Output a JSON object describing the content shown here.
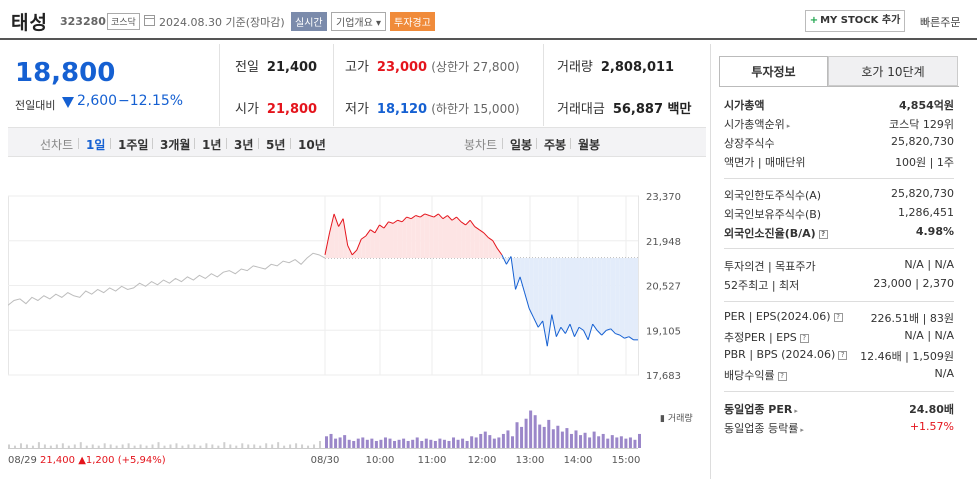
{
  "header": {
    "name": "태성",
    "code": "323280",
    "market": "코스닥",
    "date": "2024.08.30  기준(장마감)",
    "realtime": "실시간",
    "company_overview": "기업개요",
    "warning": "투자경고",
    "mystock_plus": "+",
    "mystock": "MY STOCK 추가",
    "quick_order": "빠른주문"
  },
  "price": {
    "current": "18,800",
    "change_label": "전일대비",
    "change": "2,600",
    "change_pct": "−12.15%"
  },
  "stats": {
    "prev_label": "전일",
    "prev": "21,400",
    "high_label": "고가",
    "high": "23,000",
    "upper_limit": "(상한가 27,800)",
    "volume_label": "거래량",
    "volume": "2,808,011",
    "open_label": "시가",
    "open": "21,800",
    "low_label": "저가",
    "low": "18,120",
    "lower_limit": "(하한가 15,000)",
    "amount_label": "거래대금",
    "amount": "56,887 백만"
  },
  "chart_tabs": {
    "line_chart": "선차트",
    "periods": [
      "1일",
      "1주일",
      "3개월",
      "1년",
      "3년",
      "5년",
      "10년"
    ],
    "candle_chart": "봉차트",
    "candle_periods": [
      "일봉",
      "주봉",
      "월봉"
    ]
  },
  "chart_data": {
    "type": "line",
    "y_ticks": [
      "23,370",
      "21,948",
      "20,527",
      "19,105",
      "17,683"
    ],
    "x_ticks": [
      "08/29",
      "08/30",
      "10:00",
      "11:00",
      "12:00",
      "13:00",
      "14:00",
      "15:00"
    ],
    "volume_label": "▮ 거래량",
    "prev_close": 21400,
    "ylim": [
      17683,
      23370
    ],
    "prev_day_series": [
      19900,
      20050,
      20100,
      19950,
      20150,
      20050,
      20200,
      20100,
      20250,
      20150,
      20300,
      20200,
      20150,
      20350,
      20250,
      20400,
      20300,
      20450,
      20350,
      20500,
      20400,
      20450,
      20600,
      20500,
      20650,
      20550,
      20700,
      20600,
      20750,
      20650,
      20800,
      20700,
      20850,
      20750,
      20900,
      20800,
      20950,
      21000,
      20900,
      21050,
      21000,
      21150,
      21100,
      21050,
      21200,
      21150,
      21300,
      21250,
      21350,
      21200,
      21400,
      21550,
      21500,
      21400
    ],
    "today_series": [
      21500,
      22200,
      22800,
      22400,
      22650,
      21800,
      21500,
      21650,
      22000,
      22100,
      22300,
      22200,
      22450,
      22350,
      22550,
      22500,
      22600,
      22550,
      22700,
      22650,
      22750,
      22700,
      22800,
      22750,
      22700,
      22800,
      22650,
      22750,
      22600,
      22700,
      22550,
      22450,
      22600,
      22400,
      22300,
      22200,
      22050,
      21950,
      21700,
      21500,
      21200,
      21450,
      20400,
      20800,
      20300,
      19800,
      19500,
      19200,
      19400,
      18600,
      19600,
      18900,
      19200,
      19000,
      19300,
      18900,
      19200,
      19100,
      18800,
      19300,
      19100,
      18950,
      19100,
      19150,
      19000,
      18950,
      18850,
      18900,
      18800,
      18800
    ],
    "prev_day_volume": [
      3,
      2,
      4,
      3,
      2,
      5,
      3,
      2,
      3,
      4,
      2,
      3,
      5,
      2,
      3,
      2,
      4,
      3,
      2,
      3,
      4,
      2,
      3,
      2,
      3,
      5,
      2,
      3,
      4,
      2,
      3,
      3,
      2,
      4,
      3,
      2,
      5,
      3,
      2,
      4,
      3,
      3,
      2,
      4,
      3,
      5,
      2,
      3,
      4,
      3,
      2,
      3,
      6,
      4
    ],
    "today_volume": [
      10,
      12,
      8,
      9,
      11,
      7,
      6,
      8,
      9,
      7,
      8,
      6,
      7,
      9,
      8,
      6,
      7,
      8,
      6,
      7,
      9,
      6,
      8,
      7,
      6,
      8,
      7,
      6,
      9,
      7,
      8,
      6,
      10,
      9,
      12,
      14,
      11,
      8,
      9,
      12,
      15,
      10,
      22,
      18,
      25,
      32,
      28,
      20,
      18,
      24,
      16,
      19,
      14,
      17,
      12,
      15,
      11,
      13,
      9,
      14,
      10,
      12,
      8,
      11,
      9,
      10,
      8,
      9,
      7,
      12
    ],
    "volume_max": 35
  },
  "side": {
    "tab_invest": "투자정보",
    "tab_orderbook": "호가 10단계",
    "market_cap_label": "시가총액",
    "market_cap": "4,854억원",
    "rank_label": "시가총액순위",
    "rank": "코스닥 129위",
    "shares_label": "상장주식수",
    "shares": "25,820,730",
    "par_label": "액면가 | 매매단위",
    "par": "100원 | 1주",
    "foreign_limit_label": "외국인한도주식수(A)",
    "foreign_limit": "25,820,730",
    "foreign_hold_label": "외국인보유주식수(B)",
    "foreign_hold": "1,286,451",
    "foreign_ratio_label": "외국인소진율(B/A)",
    "foreign_ratio": "4.98%",
    "opinion_label": "투자의견 | 목표주가",
    "opinion": "N/A | N/A",
    "week52_label": "52주최고 | 최저",
    "week52": "23,000 | 2,370",
    "per_label": "PER | EPS(2024.06)",
    "per": "226.51배 | 83원",
    "est_per_label": "추정PER | EPS",
    "est_per": "N/A | N/A",
    "pbr_label": "PBR | BPS (2024.06)",
    "pbr": "12.46배 | 1,509원",
    "dividend_label": "배당수익률",
    "dividend": "N/A",
    "industry_per_label": "동일업종 PER",
    "industry_per": "24.80배",
    "industry_change_label": "동일업종 등락률",
    "industry_change": "+1.57%"
  },
  "footer": {
    "prev_date": "08/29",
    "prev_close": "21,400",
    "prev_change": "▲1,200 (+5,94%)"
  }
}
